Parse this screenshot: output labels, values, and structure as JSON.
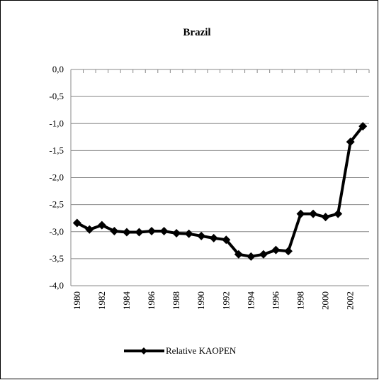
{
  "chart_data": {
    "type": "line",
    "title": "Brazil",
    "categories": [
      "1980",
      null,
      "1982",
      null,
      "1984",
      null,
      "1986",
      null,
      "1988",
      null,
      "1990",
      null,
      "1992",
      null,
      "1994",
      null,
      "1996",
      null,
      "1998",
      null,
      "2000",
      null,
      "2002",
      null
    ],
    "series": [
      {
        "name": "Relative KAOPEN",
        "color": "#000000",
        "values": [
          -2.84,
          -2.96,
          -2.88,
          -2.99,
          -3.01,
          -3.01,
          -2.99,
          -2.99,
          -3.03,
          -3.04,
          -3.08,
          -3.12,
          -3.15,
          -3.42,
          -3.46,
          -3.42,
          -3.34,
          -3.36,
          -2.67,
          -2.67,
          -2.73,
          -2.67,
          -1.34,
          -1.05
        ]
      }
    ],
    "ylim": [
      -4.0,
      0.0
    ],
    "yticks": [
      {
        "value": -4.0,
        "label": "-4,0"
      },
      {
        "value": -3.5,
        "label": "-3,5"
      },
      {
        "value": -3.0,
        "label": "-3,0"
      },
      {
        "value": -2.5,
        "label": "-2,5"
      },
      {
        "value": -2.0,
        "label": "-2,0"
      },
      {
        "value": -1.5,
        "label": "-1,5"
      },
      {
        "value": -1.0,
        "label": "-1,0"
      },
      {
        "value": -0.5,
        "label": "-0,5"
      },
      {
        "value": 0.0,
        "label": "0,0"
      }
    ],
    "grid": true,
    "legend": "bottom"
  }
}
